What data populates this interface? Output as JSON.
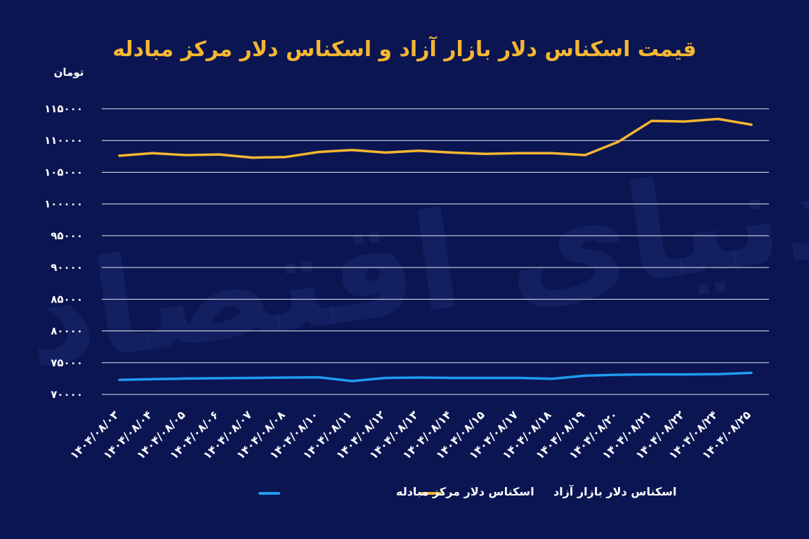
{
  "colors": {
    "background": "#0b1552",
    "title": "#f5b731",
    "text": "#ffffff",
    "grid": "#ffffff",
    "series_free": "#f5b731",
    "series_center": "#1e9cf0",
    "watermark": "#1a2a6e"
  },
  "watermark_text": "دنیای اقتصاد",
  "chart_data": {
    "type": "line",
    "title": "قیمت اسکناس دلار بازار آزاد و اسکناس دلار مرکز مبادله",
    "ylabel": "تومان",
    "ylim": [
      70000,
      115000
    ],
    "yticks": [
      115000,
      110000,
      105000,
      100000,
      95000,
      90000,
      85000,
      80000,
      75000,
      70000
    ],
    "ytick_labels": [
      "۱۱۵۰۰۰",
      "۱۱۰۰۰۰",
      "۱۰۵۰۰۰",
      "۱۰۰۰۰۰",
      "۹۵۰۰۰",
      "۹۰۰۰۰",
      "۸۵۰۰۰",
      "۸۰۰۰۰",
      "۷۵۰۰۰",
      "۷۰۰۰۰"
    ],
    "grid": true,
    "legend_position": "bottom",
    "categories": [
      "۱۴۰۴/۰۸/۰۳",
      "۱۴۰۴/۰۸/۰۴",
      "۱۴۰۴/۰۸/۰۵",
      "۱۴۰۴/۰۸/۰۶",
      "۱۴۰۴/۰۸/۰۷",
      "۱۴۰۴/۰۸/۰۸",
      "۱۴۰۴/۰۸/۱۰",
      "۱۴۰۴/۰۸/۱۱",
      "۱۴۰۴/۰۸/۱۲",
      "۱۴۰۴/۰۸/۱۳",
      "۱۴۰۴/۰۸/۱۴",
      "۱۴۰۴/۰۸/۱۵",
      "۱۴۰۴/۰۸/۱۷",
      "۱۴۰۴/۰۸/۱۸",
      "۱۴۰۴/۰۸/۱۹",
      "۱۴۰۴/۰۸/۲۰",
      "۱۴۰۴/۰۸/۲۱",
      "۱۴۰۴/۰۸/۲۲",
      "۱۴۰۴/۰۸/۲۴",
      "۱۴۰۴/۰۸/۲۵"
    ],
    "series": [
      {
        "name": "اسکناس دلار بازار آزاد",
        "color_key": "series_free",
        "values": [
          107600,
          108000,
          107700,
          107800,
          107300,
          107400,
          108200,
          108500,
          108100,
          108400,
          108100,
          107900,
          108000,
          108000,
          107700,
          109800,
          113100,
          113000,
          113400,
          112500
        ]
      },
      {
        "name": "اسکناس دلار مرکز مبادله",
        "color_key": "series_center",
        "values": [
          72300,
          72400,
          72500,
          72550,
          72600,
          72650,
          72700,
          72100,
          72600,
          72650,
          72600,
          72600,
          72600,
          72450,
          72950,
          73100,
          73150,
          73150,
          73200,
          73400
        ]
      }
    ]
  }
}
